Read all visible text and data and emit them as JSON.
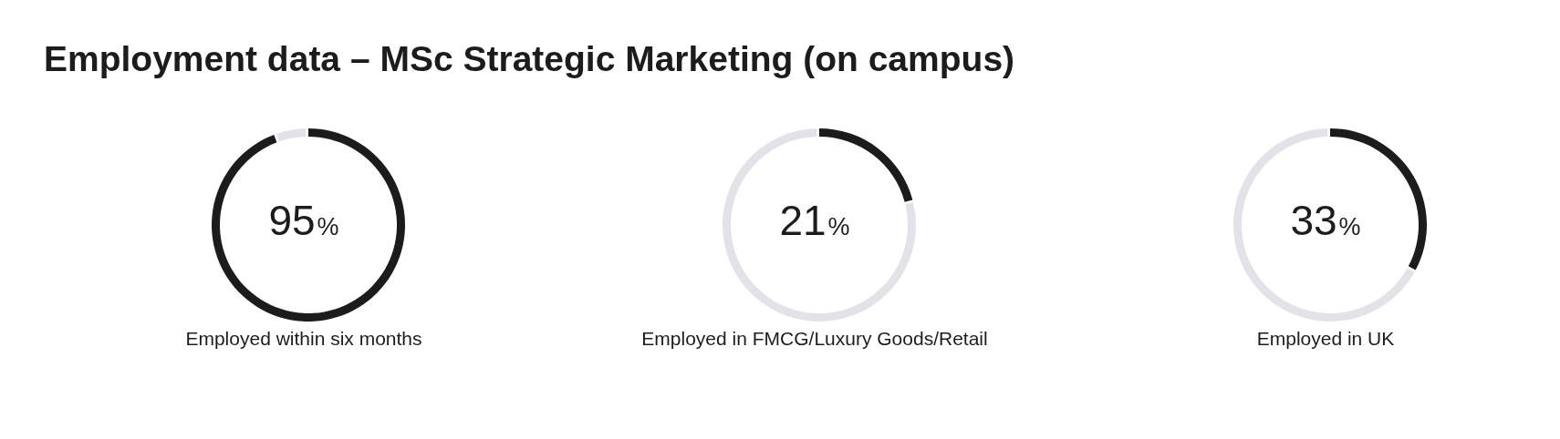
{
  "chart_data": [
    {
      "type": "donut",
      "title": "Employment data – MSc Strategic Marketing (on campus)",
      "xlabel": "Employed within six months",
      "categories": [
        null,
        null
      ],
      "values": [
        95,
        5
      ],
      "colors": [
        "#1c1c1c",
        "#e1e3e8"
      ],
      "annotations": [
        "95%"
      ]
    },
    {
      "type": "donut",
      "xlabel": "Employed in FMCG/Luxury Goods/Retail",
      "categories": [
        null,
        null
      ],
      "values": [
        21,
        79
      ],
      "colors": [
        "#1c1c1c",
        "#e1e3e8"
      ],
      "annotations": [
        "21%"
      ]
    },
    {
      "type": "donut",
      "xlabel": "Employed in UK",
      "categories": [
        null,
        null
      ],
      "values": [
        33,
        67
      ],
      "colors": [
        "#1c1c1c",
        "#e1e3e8"
      ],
      "annotations": [
        "33%"
      ]
    }
  ]
}
